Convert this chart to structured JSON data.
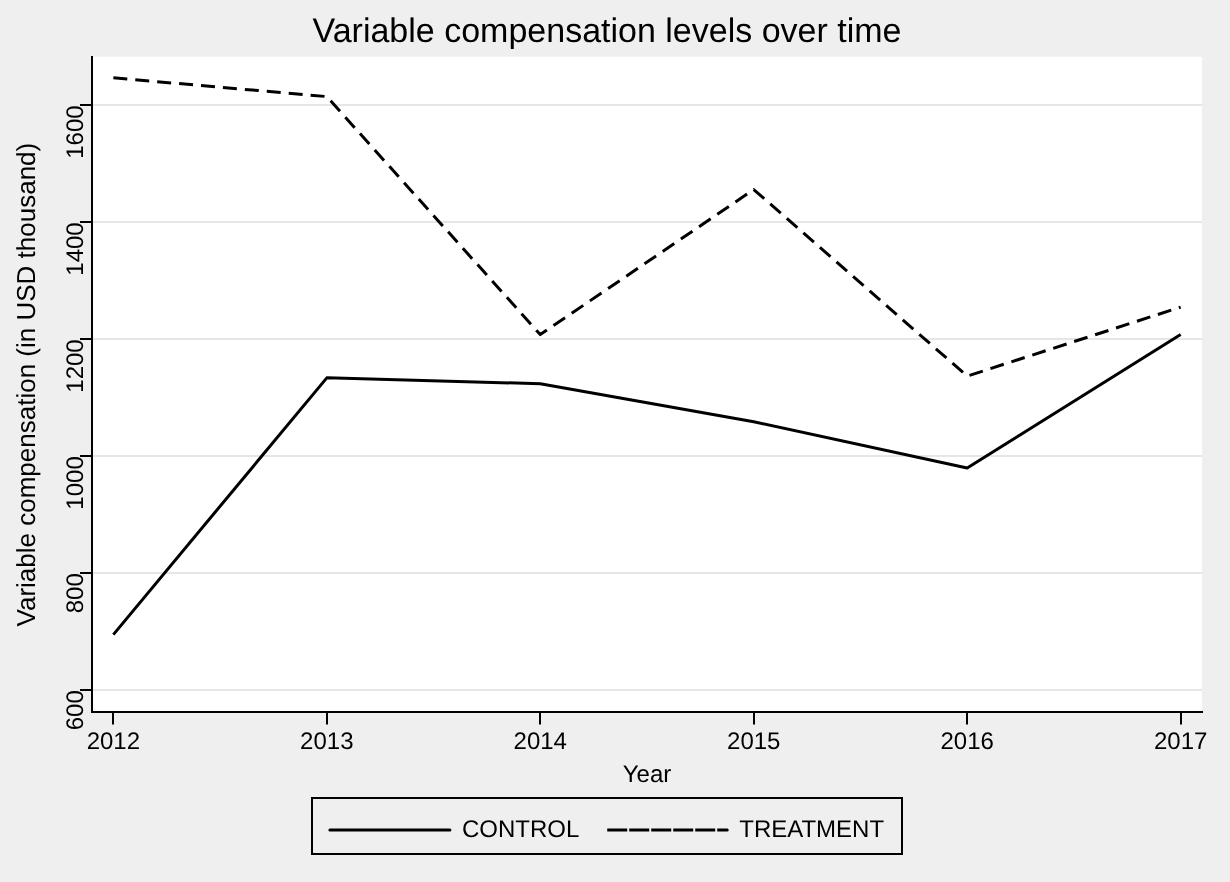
{
  "chart_data": {
    "type": "line",
    "title": "Variable compensation levels over time",
    "xlabel": "Year",
    "ylabel": "Variable compensation (in USD thousand)",
    "x": [
      2012,
      2013,
      2014,
      2015,
      2016,
      2017
    ],
    "series": [
      {
        "name": "CONTROL",
        "color": "#000000",
        "line_style": "solid",
        "values": [
          695,
          1134,
          1124,
          1059,
          980,
          1208
        ]
      },
      {
        "name": "TREATMENT",
        "color": "#000000",
        "line_style": "dashed",
        "values": [
          1647,
          1615,
          1208,
          1456,
          1137,
          1255
        ]
      }
    ],
    "xlim": [
      2011.9,
      2017.1
    ],
    "xticks": [
      2012,
      2013,
      2014,
      2015,
      2016,
      2017
    ],
    "ylim": [
      562,
      1683
    ],
    "yticks": [
      600,
      800,
      1000,
      1200,
      1400,
      1600
    ],
    "grid": "y",
    "legend": "bottom",
    "marker": "none"
  }
}
